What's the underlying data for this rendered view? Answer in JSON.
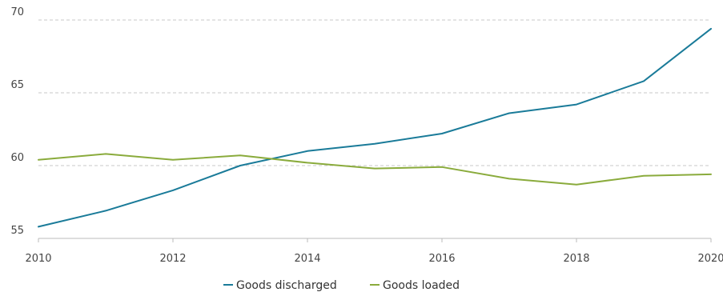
{
  "chart_data": {
    "type": "line",
    "x": [
      2010,
      2011,
      2012,
      2013,
      2014,
      2015,
      2016,
      2017,
      2018,
      2019,
      2020
    ],
    "xticks": [
      "2010",
      "2012",
      "2014",
      "2016",
      "2018",
      "2020"
    ],
    "yticks": [
      "55",
      "60",
      "65",
      "70"
    ],
    "ylim": [
      55,
      70
    ],
    "xlim": [
      2010,
      2020
    ],
    "grid": "horizontal dashed",
    "legend_position": "bottom-center",
    "series": [
      {
        "name": "Goods discharged",
        "color": "#1a7b99",
        "values": [
          55.8,
          56.9,
          58.3,
          60.0,
          61.0,
          61.5,
          62.2,
          63.6,
          64.2,
          65.8,
          69.4
        ]
      },
      {
        "name": "Goods loaded",
        "color": "#8aab3c",
        "values": [
          60.4,
          60.8,
          60.4,
          60.7,
          60.2,
          59.8,
          59.9,
          59.1,
          58.7,
          59.3,
          59.4
        ]
      }
    ]
  }
}
